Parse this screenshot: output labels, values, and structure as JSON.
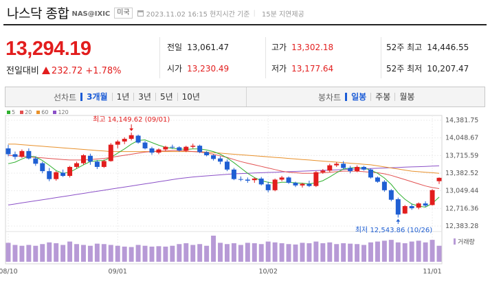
{
  "header": {
    "title": "나스닥 종합",
    "code": "NAS@IXIC",
    "market": "미국",
    "timestamp": "2023.11.02 16:15 현지시간 기준",
    "delay": "15분 지연제공"
  },
  "quote": {
    "price": "13,294.19",
    "change_label": "전일대비",
    "change": "232.72",
    "change_pct": "+1.78%"
  },
  "stats": {
    "prev_close": {
      "label": "전일",
      "value": "13,061.47"
    },
    "open": {
      "label": "시가",
      "value": "13,230.49"
    },
    "high": {
      "label": "고가",
      "value": "13,302.18"
    },
    "low": {
      "label": "저가",
      "value": "13,177.64"
    },
    "w52_high": {
      "label": "52주 최고",
      "value": "14,446.55"
    },
    "w52_low": {
      "label": "52주 최저",
      "value": "10,207.47"
    }
  },
  "tabs": {
    "line_label": "선차트",
    "line_items": [
      "3개월",
      "1년",
      "3년",
      "5년",
      "10년"
    ],
    "line_selected": 0,
    "candle_label": "봉차트",
    "candle_items": [
      "일봉",
      "주봉",
      "월봉"
    ],
    "candle_selected": 0
  },
  "colors": {
    "up": "#e21d1d",
    "down": "#1f5fd3",
    "ma5": "#2fb02f",
    "ma20": "#e25050",
    "ma60": "#e8902a",
    "ma120": "#8a4fc7",
    "volume": "#b79ad6"
  },
  "chart_data": {
    "type": "candlestick",
    "legend": [
      "5",
      "20",
      "60",
      "120"
    ],
    "y_ticks": [
      "14,381.75",
      "14,048.67",
      "13,715.59",
      "13,382.52",
      "13,049.44",
      "12,716.36",
      "12,383.28"
    ],
    "ylim": [
      12383.28,
      14381.75
    ],
    "x_ticks": [
      "08/10",
      "09/01",
      "10/02",
      "11/01"
    ],
    "max_annotation": "최고 14,149.62 (09/01)",
    "min_annotation": "최저 12,543.86 (10/26)",
    "volume_label": "거래량",
    "ohlc": [
      [
        13850,
        13920,
        13700,
        13740
      ],
      [
        13740,
        13790,
        13640,
        13690
      ],
      [
        13690,
        13830,
        13670,
        13800
      ],
      [
        13800,
        13850,
        13640,
        13660
      ],
      [
        13660,
        13700,
        13520,
        13560
      ],
      [
        13570,
        13600,
        13380,
        13420
      ],
      [
        13420,
        13480,
        13230,
        13270
      ],
      [
        13270,
        13420,
        13240,
        13400
      ],
      [
        13390,
        13450,
        13310,
        13330
      ],
      [
        13330,
        13520,
        13300,
        13500
      ],
      [
        13500,
        13600,
        13470,
        13570
      ],
      [
        13570,
        13740,
        13540,
        13720
      ],
      [
        13710,
        13750,
        13540,
        13600
      ],
      [
        13600,
        13630,
        13460,
        13500
      ],
      [
        13500,
        13640,
        13480,
        13610
      ],
      [
        13610,
        13950,
        13600,
        13920
      ],
      [
        13920,
        14010,
        13850,
        13980
      ],
      [
        13980,
        14060,
        13930,
        14030
      ],
      [
        14030,
        14149.62,
        14000,
        14100
      ],
      [
        14090,
        14110,
        13940,
        13960
      ],
      [
        13960,
        13990,
        13830,
        13850
      ],
      [
        13850,
        13880,
        13730,
        13770
      ],
      [
        13770,
        13850,
        13740,
        13830
      ],
      [
        13830,
        13900,
        13800,
        13880
      ],
      [
        13880,
        13920,
        13840,
        13870
      ],
      [
        13870,
        13890,
        13790,
        13810
      ],
      [
        13810,
        13900,
        13780,
        13880
      ],
      [
        13880,
        13940,
        13850,
        13900
      ],
      [
        13900,
        13920,
        13760,
        13780
      ],
      [
        13780,
        13800,
        13700,
        13720
      ],
      [
        13720,
        13740,
        13620,
        13650
      ],
      [
        13660,
        13700,
        13550,
        13600
      ],
      [
        13600,
        13640,
        13420,
        13450
      ],
      [
        13450,
        13480,
        13250,
        13270
      ],
      [
        13270,
        13320,
        13230,
        13260
      ],
      [
        13260,
        13300,
        13200,
        13240
      ],
      [
        13250,
        13300,
        13200,
        13280
      ],
      [
        13280,
        13310,
        13150,
        13170
      ],
      [
        13170,
        13220,
        13020,
        13060
      ],
      [
        13060,
        13280,
        13040,
        13260
      ],
      [
        13260,
        13330,
        13230,
        13300
      ],
      [
        13300,
        13320,
        13180,
        13200
      ],
      [
        13200,
        13220,
        13120,
        13150
      ],
      [
        13150,
        13200,
        13110,
        13180
      ],
      [
        13180,
        13240,
        13120,
        13140
      ],
      [
        13140,
        13420,
        13120,
        13400
      ],
      [
        13400,
        13460,
        13370,
        13430
      ],
      [
        13430,
        13560,
        13400,
        13530
      ],
      [
        13530,
        13590,
        13500,
        13560
      ],
      [
        13560,
        13610,
        13460,
        13480
      ],
      [
        13480,
        13520,
        13380,
        13420
      ],
      [
        13420,
        13530,
        13400,
        13500
      ],
      [
        13500,
        13520,
        13430,
        13450
      ],
      [
        13450,
        13470,
        13280,
        13300
      ],
      [
        13300,
        13320,
        13200,
        13220
      ],
      [
        13220,
        13250,
        13030,
        13060
      ],
      [
        13060,
        13080,
        12850,
        12880
      ],
      [
        12890,
        12920,
        12543.86,
        12600
      ],
      [
        12620,
        12780,
        12610,
        12760
      ],
      [
        12760,
        12800,
        12690,
        12720
      ],
      [
        12730,
        12830,
        12700,
        12810
      ],
      [
        12810,
        12850,
        12740,
        12770
      ],
      [
        12780,
        13080,
        12770,
        13061.47
      ],
      [
        13230.49,
        13302.18,
        13177.64,
        13294.19
      ]
    ],
    "volume": [
      45,
      40,
      38,
      40,
      38,
      42,
      46,
      44,
      40,
      48,
      42,
      40,
      38,
      43,
      42,
      40,
      38,
      36,
      35,
      40,
      38,
      36,
      37,
      36,
      38,
      42,
      44,
      40,
      42,
      38,
      62,
      45,
      42,
      44,
      40,
      45,
      44,
      42,
      48,
      46,
      44,
      42,
      41,
      45,
      44,
      48,
      44,
      46,
      42,
      44,
      43,
      42,
      40,
      46,
      48,
      50,
      52,
      46,
      44,
      48,
      50,
      46,
      52,
      38
    ],
    "ma5": [
      13560,
      13590,
      13650,
      13700,
      13690,
      13620,
      13530,
      13430,
      13380,
      13400,
      13470,
      13540,
      13600,
      13620,
      13620,
      13680,
      13760,
      13840,
      13930,
      14000,
      14010,
      13960,
      13910,
      13870,
      13850,
      13840,
      13830,
      13840,
      13840,
      13820,
      13790,
      13740,
      13670,
      13580,
      13480,
      13380,
      13300,
      13240,
      13210,
      13190,
      13210,
      13210,
      13200,
      13190,
      13180,
      13200,
      13240,
      13310,
      13390,
      13460,
      13480,
      13490,
      13480,
      13440,
      13380,
      13290,
      13170,
      13010,
      12890,
      12800,
      12760,
      12740,
      12810,
      12930
    ],
    "ma20": [
      13720,
      13710,
      13700,
      13690,
      13680,
      13670,
      13660,
      13650,
      13640,
      13630,
      13630,
      13630,
      13640,
      13650,
      13660,
      13680,
      13700,
      13720,
      13740,
      13760,
      13780,
      13790,
      13800,
      13800,
      13810,
      13810,
      13800,
      13790,
      13780,
      13760,
      13740,
      13710,
      13680,
      13640,
      13600,
      13570,
      13540,
      13510,
      13480,
      13450,
      13420,
      13400,
      13390,
      13380,
      13380,
      13380,
      13390,
      13400,
      13410,
      13420,
      13420,
      13420,
      13410,
      13400,
      13390,
      13370,
      13340,
      13300,
      13260,
      13220,
      13180,
      13140,
      13110,
      13090
    ],
    "ma60": [
      13930,
      13930,
      13920,
      13910,
      13900,
      13890,
      13880,
      13870,
      13860,
      13850,
      13840,
      13830,
      13820,
      13810,
      13800,
      13790,
      13790,
      13790,
      13790,
      13790,
      13790,
      13790,
      13790,
      13790,
      13790,
      13790,
      13790,
      13790,
      13790,
      13780,
      13770,
      13760,
      13750,
      13740,
      13730,
      13720,
      13710,
      13700,
      13690,
      13680,
      13670,
      13660,
      13650,
      13640,
      13630,
      13620,
      13610,
      13600,
      13590,
      13580,
      13570,
      13560,
      13550,
      13540,
      13520,
      13500,
      13480,
      13460,
      13440,
      13420,
      13410,
      13400,
      13390,
      13380
    ],
    "ma120": [
      12780,
      12800,
      12820,
      12840,
      12860,
      12880,
      12900,
      12920,
      12940,
      12960,
      12980,
      13000,
      13020,
      13040,
      13060,
      13080,
      13100,
      13120,
      13140,
      13160,
      13180,
      13200,
      13220,
      13240,
      13260,
      13280,
      13295,
      13310,
      13320,
      13330,
      13340,
      13350,
      13360,
      13370,
      13375,
      13380,
      13385,
      13390,
      13395,
      13400,
      13405,
      13410,
      13415,
      13420,
      13425,
      13430,
      13435,
      13440,
      13445,
      13450,
      13455,
      13460,
      13465,
      13470,
      13475,
      13480,
      13485,
      13490,
      13495,
      13500,
      13505,
      13510,
      13515,
      13520
    ]
  }
}
